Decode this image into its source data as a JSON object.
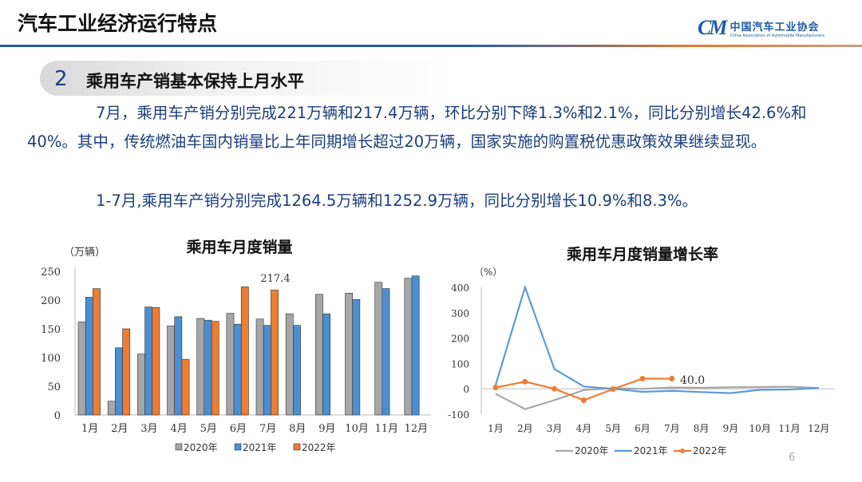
{
  "header": {
    "title": "汽车工业经济运行特点",
    "logo_cn": "中国汽车工业协会",
    "logo_en": "China Association of Automobile Manufacturers",
    "logo_mark": "CAAM"
  },
  "section": {
    "number": "2",
    "title": "乘用车产销基本保持上月水平"
  },
  "paragraphs": [
    "7月，乘用车产销分别完成221万辆和217.4万辆，环比分别下降1.3%和2.1%，同比分别增长42.6%和40%。其中，传统燃油车国内销量比上年同期增长超过20万辆，国家实施的购置税优惠政策效果继续显现。",
    "1-7月,乘用车产销分别完成1264.5万辆和1252.9万辆，同比分别增长10.9%和8.3%。"
  ],
  "page_number": "6",
  "chart_data": [
    {
      "type": "bar",
      "title": "乘用车月度销量",
      "ylabel": "（万辆）",
      "ylim": [
        0,
        250
      ],
      "yticks": [
        0,
        50,
        100,
        150,
        200,
        250
      ],
      "categories": [
        "1月",
        "2月",
        "3月",
        "4月",
        "5月",
        "6月",
        "7月",
        "8月",
        "9月",
        "10月",
        "11月",
        "12月"
      ],
      "series": [
        {
          "name": "2020年",
          "color": "#a6a6a6",
          "values": [
            162,
            24,
            106,
            155,
            168,
            177,
            167,
            176,
            210,
            212,
            231,
            238
          ]
        },
        {
          "name": "2021年",
          "color": "#4a8fd4",
          "values": [
            205,
            117,
            188,
            171,
            165,
            158,
            156,
            156,
            176,
            201,
            220,
            242
          ]
        },
        {
          "name": "2022年",
          "color": "#ed7d31",
          "values": [
            220,
            150,
            187,
            97,
            163,
            223,
            217.4,
            null,
            null,
            null,
            null,
            null
          ]
        }
      ],
      "annotation": "217.4",
      "legend": "bottom",
      "grid": false
    },
    {
      "type": "line",
      "title": "乘用车月度销量增长率",
      "ylabel": "（%）",
      "ylim": [
        -100,
        400
      ],
      "yticks": [
        -100,
        0,
        100,
        200,
        300,
        400
      ],
      "categories": [
        "1月",
        "2月",
        "3月",
        "4月",
        "5月",
        "6月",
        "7月",
        "8月",
        "9月",
        "10月",
        "11月",
        "12月"
      ],
      "series": [
        {
          "name": "2020年",
          "color": "#a6a6a6",
          "values": [
            -20,
            -80,
            -45,
            -5,
            2,
            0,
            5,
            4,
            6,
            7,
            8,
            3
          ]
        },
        {
          "name": "2021年",
          "color": "#5b9bd5",
          "values": [
            15,
            400,
            78,
            9,
            0,
            -12,
            -8,
            -13,
            -17,
            -4,
            -3,
            3
          ]
        },
        {
          "name": "2022年",
          "color": "#ed7d31",
          "values": [
            5,
            28,
            0,
            -45,
            -1,
            40,
            40,
            null,
            null,
            null,
            null,
            null
          ]
        }
      ],
      "annotation": "40.0",
      "legend": "bottom",
      "grid": false
    }
  ]
}
